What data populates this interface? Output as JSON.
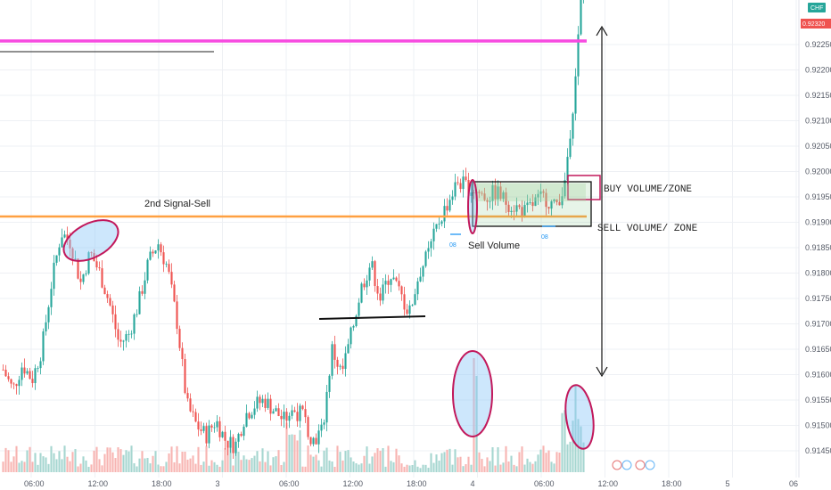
{
  "chart_data": {
    "type": "candlestick",
    "symbol_badge": "CHF",
    "current_price": "0.92320",
    "y_ticks": [
      "0.92250",
      "0.92200",
      "0.92150",
      "0.92100",
      "0.92050",
      "0.92000",
      "0.91950",
      "0.91900",
      "0.91850",
      "0.91800",
      "0.91750",
      "0.91700",
      "0.91650",
      "0.91600",
      "0.91550",
      "0.91500",
      "0.91450"
    ],
    "x_ticks": [
      "06:00",
      "12:00",
      "18:00",
      "3",
      "06:00",
      "12:00",
      "18:00",
      "4",
      "06:00",
      "12:00",
      "18:00",
      "5",
      "06"
    ],
    "grid": true,
    "colors": {
      "up": "#26a69a",
      "down": "#ef5350",
      "up_volume": "#a5d6d0",
      "down_volume": "#f7b4b2",
      "magenta_level": "#f74ae0",
      "orange_level": "#ffa040",
      "ellipse": "#c2185b",
      "zone": "#2e7d32",
      "price_badge": "#ef5350"
    },
    "levels": [
      {
        "color": "magenta",
        "price": 0.92268
      },
      {
        "color": "orange",
        "price": 0.91912
      }
    ],
    "price_path": [
      0.9161,
      0.9157,
      0.9162,
      0.9159,
      0.9165,
      0.9178,
      0.9188,
      0.9186,
      0.9178,
      0.9184,
      0.918,
      0.9174,
      0.9166,
      0.9168,
      0.9174,
      0.9182,
      0.9186,
      0.9181,
      0.917,
      0.9154,
      0.915,
      0.9148,
      0.9151,
      0.9147,
      0.9146,
      0.9152,
      0.9154,
      0.9155,
      0.9153,
      0.9151,
      0.9153,
      0.9152,
      0.9147,
      0.9149,
      0.9165,
      0.916,
      0.9168,
      0.9177,
      0.9182,
      0.9175,
      0.918,
      0.9176,
      0.9172,
      0.918,
      0.9184,
      0.919,
      0.9194,
      0.9198,
      0.9197,
      0.9196,
      0.9195,
      0.9196,
      0.9194,
      0.9193,
      0.9192,
      0.9194,
      0.9195,
      0.9193,
      0.9197,
      0.9215,
      0.924
    ],
    "annotations": {
      "signal": "2nd Signal-Sell",
      "buy_zone": "BUY VOLUME/ZONE",
      "sell_zone": "SELL VOLUME/ ZONE",
      "sell_volume": "Sell Volume"
    },
    "small_markers": [
      "08",
      "08"
    ]
  }
}
